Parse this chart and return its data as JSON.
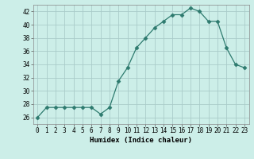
{
  "x": [
    0,
    1,
    2,
    3,
    4,
    5,
    6,
    7,
    8,
    9,
    10,
    11,
    12,
    13,
    14,
    15,
    16,
    17,
    18,
    19,
    20,
    21,
    22,
    23
  ],
  "y": [
    26,
    27.5,
    27.5,
    27.5,
    27.5,
    27.5,
    27.5,
    26.5,
    27.5,
    31.5,
    33.5,
    36.5,
    38,
    39.5,
    40.5,
    41.5,
    41.5,
    42.5,
    42,
    40.5,
    40.5,
    36.5,
    34,
    33.5
  ],
  "line_color": "#2d7a6e",
  "marker": "D",
  "marker_size": 2.5,
  "bg_color": "#cceee8",
  "grid_color": "#aaccca",
  "xlabel": "Humidex (Indice chaleur)",
  "xlim": [
    -0.5,
    23.5
  ],
  "ylim": [
    25,
    43
  ],
  "yticks": [
    26,
    28,
    30,
    32,
    34,
    36,
    38,
    40,
    42
  ],
  "xticks": [
    0,
    1,
    2,
    3,
    4,
    5,
    6,
    7,
    8,
    9,
    10,
    11,
    12,
    13,
    14,
    15,
    16,
    17,
    18,
    19,
    20,
    21,
    22,
    23
  ],
  "tick_fontsize": 5.5,
  "label_fontsize": 6.5
}
